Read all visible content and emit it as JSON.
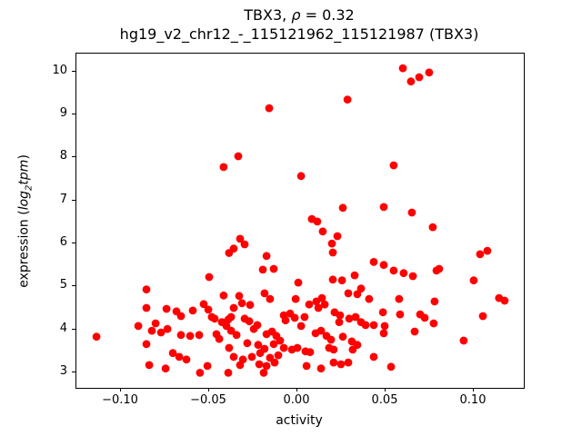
{
  "title": {
    "part1": "TBX3, ",
    "rho": "ρ",
    "part2": " = 0.32",
    "line2": "hg19_v2_chr12_-_115121962_115121987 (TBX3)"
  },
  "axes": {
    "xlabel": "activity",
    "ylabel": {
      "prefix": "expression (",
      "log": "log",
      "sub": "2",
      "tpm": "tpm",
      "suffix": ")"
    },
    "x_ticks": [
      {
        "value": -0.1,
        "label": "−0.10"
      },
      {
        "value": -0.05,
        "label": "−0.05"
      },
      {
        "value": 0.0,
        "label": "0.00"
      },
      {
        "value": 0.05,
        "label": "0.05"
      },
      {
        "value": 0.1,
        "label": "0.10"
      }
    ],
    "y_ticks": [
      {
        "value": 3,
        "label": "3"
      },
      {
        "value": 4,
        "label": "4"
      },
      {
        "value": 5,
        "label": "5"
      },
      {
        "value": 6,
        "label": "6"
      },
      {
        "value": 7,
        "label": "7"
      },
      {
        "value": 8,
        "label": "8"
      },
      {
        "value": 9,
        "label": "9"
      },
      {
        "value": 10,
        "label": "10"
      }
    ]
  },
  "chart_data": {
    "type": "scatter",
    "title": "TBX3, ρ = 0.32",
    "subtitle": "hg19_v2_chr12_-_115121962_115121987 (TBX3)",
    "xlabel": "activity",
    "ylabel": "expression (log2 tpm)",
    "xlim": [
      -0.1253,
      0.1284
    ],
    "ylim": [
      2.64,
      10.42
    ],
    "grid": false,
    "legend": "none",
    "marker_color": "#ff0000",
    "marker_radius_px": 4.4,
    "series": [
      {
        "name": "samples",
        "points": [
          [
            -0.016,
            9.15
          ],
          [
            0.0284,
            9.35
          ],
          [
            0.0598,
            10.08
          ],
          [
            0.0644,
            9.77
          ],
          [
            0.0691,
            9.87
          ],
          [
            0.0747,
            9.98
          ],
          [
            -0.0418,
            7.78
          ],
          [
            -0.0335,
            8.03
          ],
          [
            0.0021,
            7.57
          ],
          [
            0.0258,
            6.83
          ],
          [
            0.049,
            6.85
          ],
          [
            0.0546,
            7.82
          ],
          [
            0.0649,
            6.72
          ],
          [
            0.0768,
            6.38
          ],
          [
            0.0082,
            6.57
          ],
          [
            0.0113,
            6.51
          ],
          [
            0.0144,
            6.28
          ],
          [
            0.0227,
            6.17
          ],
          [
            0.0196,
            6.0
          ],
          [
            0.0201,
            5.79
          ],
          [
            -0.0325,
            6.11
          ],
          [
            -0.0299,
            5.98
          ],
          [
            -0.0361,
            5.88
          ],
          [
            -0.0175,
            5.71
          ],
          [
            -0.0134,
            5.41
          ],
          [
            -0.0196,
            5.39
          ],
          [
            0.0433,
            5.57
          ],
          [
            0.049,
            5.5
          ],
          [
            0.1036,
            5.75
          ],
          [
            0.1077,
            5.83
          ],
          [
            0.0804,
            5.41
          ],
          [
            -0.0387,
            5.78
          ],
          [
            -0.1139,
            3.83
          ],
          [
            -0.0856,
            4.93
          ],
          [
            -0.05,
            5.22
          ],
          [
            -0.0418,
            4.79
          ],
          [
            -0.0856,
            4.5
          ],
          [
            -0.0742,
            4.48
          ],
          [
            -0.0686,
            4.42
          ],
          [
            -0.066,
            4.31
          ],
          [
            -0.0593,
            4.44
          ],
          [
            -0.0531,
            4.59
          ],
          [
            -0.0505,
            4.46
          ],
          [
            -0.0485,
            4.29
          ],
          [
            -0.0469,
            4.25
          ],
          [
            -0.0428,
            4.17
          ],
          [
            -0.0392,
            4.23
          ],
          [
            -0.0402,
            4.08
          ],
          [
            -0.0376,
            4.29
          ],
          [
            -0.0902,
            4.08
          ],
          [
            -0.0804,
            4.14
          ],
          [
            -0.0825,
            3.97
          ],
          [
            -0.0773,
            3.93
          ],
          [
            -0.0737,
            4.01
          ],
          [
            -0.066,
            3.87
          ],
          [
            -0.0608,
            3.85
          ],
          [
            -0.0557,
            3.87
          ],
          [
            -0.0856,
            3.66
          ],
          [
            -0.0459,
            3.89
          ],
          [
            -0.0443,
            3.78
          ],
          [
            -0.0706,
            3.45
          ],
          [
            -0.067,
            3.36
          ],
          [
            -0.0629,
            3.3
          ],
          [
            -0.084,
            3.17
          ],
          [
            -0.0747,
            3.09
          ],
          [
            -0.0552,
            2.99
          ],
          [
            -0.051,
            3.15
          ],
          [
            -0.0387,
            3.57
          ],
          [
            -0.0392,
            2.99
          ],
          [
            0.0005,
            5.09
          ],
          [
            0.0201,
            5.16
          ],
          [
            0.0253,
            5.14
          ],
          [
            0.0325,
            5.26
          ],
          [
            0.0361,
            4.95
          ],
          [
            0.034,
            4.82
          ],
          [
            0.0407,
            4.71
          ],
          [
            -0.033,
            4.78
          ],
          [
            -0.0314,
            4.61
          ],
          [
            -0.0361,
            4.5
          ],
          [
            -0.0268,
            4.57
          ],
          [
            -0.0186,
            4.84
          ],
          [
            -0.0155,
            4.71
          ],
          [
            -0.001,
            4.71
          ],
          [
            0.0067,
            4.58
          ],
          [
            0.0108,
            4.65
          ],
          [
            0.0139,
            4.73
          ],
          [
            0.0155,
            4.58
          ],
          [
            0.0119,
            4.5
          ],
          [
            0.0289,
            4.84
          ],
          [
            0.0485,
            4.4
          ],
          [
            0.0495,
            4.08
          ],
          [
            -0.0376,
            3.97
          ],
          [
            -0.0299,
            4.25
          ],
          [
            -0.0273,
            4.19
          ],
          [
            -0.0227,
            4.1
          ],
          [
            -0.0247,
            4.01
          ],
          [
            -0.0077,
            4.33
          ],
          [
            -0.0041,
            4.37
          ],
          [
            -0.0015,
            4.27
          ],
          [
            -0.0067,
            4.21
          ],
          [
            0.0021,
            4.08
          ],
          [
            0.0041,
            4.29
          ],
          [
            0.0211,
            4.4
          ],
          [
            0.0242,
            4.33
          ],
          [
            0.0237,
            4.17
          ],
          [
            0.0294,
            4.25
          ],
          [
            0.033,
            4.29
          ],
          [
            0.0361,
            4.17
          ],
          [
            0.0387,
            4.1
          ],
          [
            0.0433,
            4.1
          ],
          [
            -0.0345,
            3.87
          ],
          [
            -0.0284,
            3.68
          ],
          [
            -0.0222,
            3.64
          ],
          [
            -0.0175,
            3.89
          ],
          [
            -0.0144,
            3.95
          ],
          [
            -0.0119,
            3.85
          ],
          [
            -0.0098,
            3.74
          ],
          [
            -0.0134,
            3.66
          ],
          [
            -0.0077,
            3.57
          ],
          [
            0.0103,
            3.91
          ],
          [
            0.0134,
            3.97
          ],
          [
            0.0165,
            3.85
          ],
          [
            0.0191,
            3.76
          ],
          [
            0.0258,
            3.83
          ],
          [
            0.0309,
            3.72
          ],
          [
            0.034,
            3.64
          ],
          [
            -0.0361,
            3.36
          ],
          [
            -0.0309,
            3.3
          ],
          [
            -0.0258,
            3.36
          ],
          [
            -0.0211,
            3.45
          ],
          [
            -0.0186,
            3.55
          ],
          [
            -0.0155,
            3.34
          ],
          [
            -0.0108,
            3.4
          ],
          [
            -0.0031,
            3.53
          ],
          [
            0.0,
            3.57
          ],
          [
            0.0046,
            3.49
          ],
          [
            0.0072,
            3.47
          ],
          [
            0.018,
            3.57
          ],
          [
            0.0206,
            3.53
          ],
          [
            0.0314,
            3.53
          ],
          [
            0.0433,
            3.36
          ],
          [
            0.0052,
            3.15
          ],
          [
            0.0134,
            3.09
          ],
          [
            0.0206,
            3.23
          ],
          [
            0.0247,
            3.19
          ],
          [
            0.0289,
            3.23
          ],
          [
            -0.0216,
            3.19
          ],
          [
            -0.0175,
            3.15
          ],
          [
            -0.0129,
            3.23
          ],
          [
            -0.0325,
            3.17
          ],
          [
            -0.0191,
            2.99
          ],
          [
            0.0546,
            5.37
          ],
          [
            0.0603,
            5.31
          ],
          [
            0.0655,
            5.24
          ],
          [
            0.0789,
            5.37
          ],
          [
            0.1,
            5.14
          ],
          [
            0.0577,
            4.71
          ],
          [
            0.0778,
            4.65
          ],
          [
            0.1144,
            4.73
          ],
          [
            0.1175,
            4.67
          ],
          [
            0.0582,
            4.35
          ],
          [
            0.0696,
            4.35
          ],
          [
            0.0722,
            4.27
          ],
          [
            0.0773,
            4.14
          ],
          [
            0.0665,
            3.95
          ],
          [
            0.1052,
            4.31
          ],
          [
            0.0943,
            3.74
          ],
          [
            0.0531,
            3.13
          ],
          [
            0.049,
            3.91
          ]
        ]
      }
    ]
  }
}
